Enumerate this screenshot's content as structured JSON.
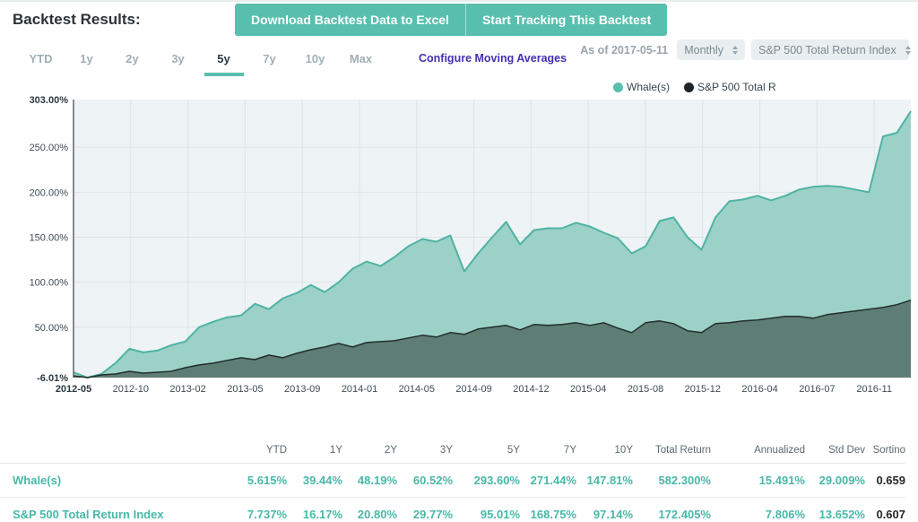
{
  "header": {
    "title": "Backtest Results:",
    "buttons": [
      "Download Backtest Data to Excel",
      "Start Tracking This Backtest"
    ]
  },
  "controls": {
    "tabs": {
      "items": [
        {
          "label": "YTD",
          "active": false
        },
        {
          "label": "1y",
          "active": false
        },
        {
          "label": "2y",
          "active": false
        },
        {
          "label": "3y",
          "active": false
        },
        {
          "label": "5y",
          "active": true
        },
        {
          "label": "7y",
          "active": false
        },
        {
          "label": "10y",
          "active": false
        },
        {
          "label": "Max",
          "active": false
        }
      ]
    },
    "configure_label": "Configure Moving Averages",
    "as_of": "As of 2017-05-11",
    "frequency": "Monthly",
    "benchmark": "S&P 500 Total Return Index"
  },
  "colors": {
    "accent_teal": "#58bfae",
    "value_teal": "#48b8a8",
    "whale_fill": "#9cd1c8",
    "whale_stroke": "#4fb3a3",
    "sp_fill": "#5b7870",
    "sp_stroke": "#232e2c",
    "plot_bg": "#eef3f5",
    "grid": "#dce4e7",
    "link_purple": "#4430b4"
  },
  "chart_data": {
    "type": "area",
    "title": "",
    "xlabel": "",
    "ylabel": "",
    "ylim": [
      -6.01,
      303
    ],
    "grid": true,
    "legend_position": "top-right",
    "legend": [
      {
        "label": "Whale(s)",
        "color": "#58bfae"
      },
      {
        "label": "S&P 500 Total R",
        "color": "#1e2528"
      }
    ],
    "yticks": [
      {
        "label": "303.00%",
        "value": 303,
        "bold": true
      },
      {
        "label": "250.00%",
        "value": 250,
        "grid": true
      },
      {
        "label": "200.00%",
        "value": 200,
        "grid": true
      },
      {
        "label": "150.00%",
        "value": 150,
        "grid": true
      },
      {
        "label": "100.00%",
        "value": 100,
        "grid": true
      },
      {
        "label": "50.00%",
        "value": 50,
        "grid": true
      },
      {
        "label": "-6.01%",
        "value": -6.01,
        "bold": true
      }
    ],
    "xticks": [
      {
        "label": "2012-05",
        "bold": true
      },
      {
        "label": "2012-10"
      },
      {
        "label": "2013-02"
      },
      {
        "label": "2013-05"
      },
      {
        "label": "2013-09"
      },
      {
        "label": "2014-01"
      },
      {
        "label": "2014-05"
      },
      {
        "label": "2014-09"
      },
      {
        "label": "2014-12"
      },
      {
        "label": "2015-04"
      },
      {
        "label": "2015-08"
      },
      {
        "label": "2015-12"
      },
      {
        "label": "2016-04"
      },
      {
        "label": "2016-07"
      },
      {
        "label": "2016-11"
      }
    ],
    "x": [
      "2012-05",
      "2012-06",
      "2012-07",
      "2012-08",
      "2012-09",
      "2012-10",
      "2012-11",
      "2012-12",
      "2013-01",
      "2013-02",
      "2013-03",
      "2013-04",
      "2013-05",
      "2013-06",
      "2013-07",
      "2013-08",
      "2013-09",
      "2013-10",
      "2013-11",
      "2013-12",
      "2014-01",
      "2014-02",
      "2014-03",
      "2014-04",
      "2014-05",
      "2014-06",
      "2014-07",
      "2014-08",
      "2014-09",
      "2014-10",
      "2014-11",
      "2014-12",
      "2015-01",
      "2015-02",
      "2015-03",
      "2015-04",
      "2015-05",
      "2015-06",
      "2015-07",
      "2015-08",
      "2015-09",
      "2015-10",
      "2015-11",
      "2015-12",
      "2016-01",
      "2016-02",
      "2016-03",
      "2016-04",
      "2016-05",
      "2016-06",
      "2016-07",
      "2016-08",
      "2016-09",
      "2016-10",
      "2016-11",
      "2016-12",
      "2017-01",
      "2017-02",
      "2017-03",
      "2017-04",
      "2017-05"
    ],
    "series": [
      {
        "name": "Whale(s)",
        "fill": "#9cd1c8",
        "stroke": "#4fb3a3",
        "stroke_width": 2,
        "opacity": 1,
        "values": [
          0,
          -6,
          -2,
          10,
          26,
          22,
          24,
          30,
          34,
          50,
          56,
          61,
          63,
          76,
          70,
          82,
          88,
          97,
          89,
          100,
          115,
          123,
          118,
          128,
          140,
          148,
          145,
          152,
          112,
          132,
          150,
          167,
          142,
          158,
          160,
          160,
          166,
          162,
          155,
          149,
          132,
          140,
          168,
          172,
          150,
          136,
          172,
          190,
          192,
          196,
          191,
          196,
          203,
          206,
          207,
          206,
          203,
          200,
          262,
          266,
          290
        ]
      },
      {
        "name": "S&P 500 Total Return Index",
        "fill": "#5b7870",
        "stroke": "#232e2c",
        "stroke_width": 1.5,
        "opacity": 0.95,
        "values": [
          -4,
          -6,
          -3,
          -2,
          1,
          -1,
          0,
          1,
          5,
          8,
          10,
          13,
          16,
          14,
          19,
          16,
          21,
          25,
          28,
          32,
          28,
          33,
          34,
          35,
          38,
          41,
          39,
          44,
          42,
          48,
          50,
          52,
          47,
          53,
          52,
          53,
          55,
          52,
          55,
          49,
          44,
          55,
          57,
          54,
          46,
          44,
          54,
          55,
          57,
          58,
          60,
          62,
          62,
          60,
          64,
          66,
          68,
          70,
          72,
          75,
          80
        ]
      }
    ]
  },
  "table": {
    "headers": [
      "YTD",
      "1Y",
      "2Y",
      "3Y",
      "5Y",
      "7Y",
      "10Y",
      "Total Return",
      "Annualized",
      "Std Dev",
      "Sortino"
    ],
    "rows": [
      {
        "label": "Whale(s)",
        "values": [
          "5.615%",
          "39.44%",
          "48.19%",
          "60.52%",
          "293.60%",
          "271.44%",
          "147.81%",
          "582.300%",
          "15.491%",
          "29.009%",
          "0.659"
        ]
      },
      {
        "label": "S&P 500 Total Return Index",
        "values": [
          "7.737%",
          "16.17%",
          "20.80%",
          "29.77%",
          "95.01%",
          "168.75%",
          "97.14%",
          "172.405%",
          "7.806%",
          "13.652%",
          "0.607"
        ]
      }
    ]
  }
}
